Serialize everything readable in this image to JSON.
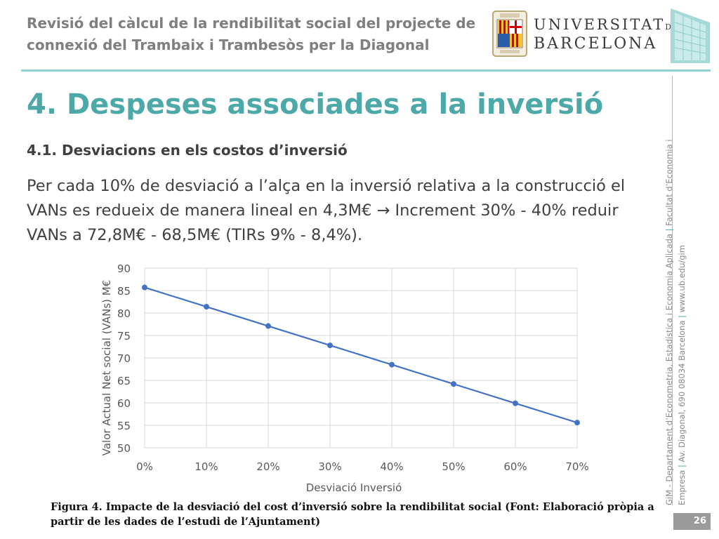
{
  "header": {
    "title": "Revisió del càlcul de la rendibilitat social del projecte de connexió del Trambaix i Trambesòs per la Diagonal",
    "logo_line1": "UNIVERSITAT",
    "logo_de": "DE",
    "logo_line2": "BARCELONA"
  },
  "page_title": "4. Despeses associades a la inversió",
  "section_title": "4.1. Desviacions en els costos d’inversió",
  "body_text": "Per cada 10% de desviació a l’alça en la inversió relativa a la construcció el VANs es redueix de manera lineal en 4,3M€ → Increment 30% - 40% reduir VANs a 72,8M€ - 68,5M€ (TIRs 9% - 8,4%).",
  "chart_data": {
    "type": "line",
    "categories": [
      "0%",
      "10%",
      "20%",
      "30%",
      "40%",
      "50%",
      "60%",
      "70%"
    ],
    "series": [
      {
        "values": [
          85.7,
          81.4,
          77.1,
          72.8,
          68.5,
          64.2,
          59.9,
          55.6
        ]
      }
    ],
    "xlabel": "Desviació Inversió",
    "ylabel": "Valor Actual Net social (VANs) M€",
    "ylim": [
      50,
      90
    ],
    "yticks": [
      50,
      55,
      60,
      65,
      70,
      75,
      80,
      85,
      90
    ],
    "grid": true,
    "line_color": "#4472c4"
  },
  "caption": "Figura 4. Impacte de la desviació del cost d’inversió sobre la rendibilitat social (Font: Elaboració pròpia a partir de les dades de l’estudi de l’Ajuntament)",
  "sidebar": {
    "line1_a": "GiM - Departament d’Econometria, Estadística i Economia Aplicada",
    "sep": "|",
    "line1_b": "Facultat d’Economia i",
    "line2_a": "Empresa",
    "line2_b": "Av. Diagonal, 690 08034 Barcelona",
    "line2_c": "www.ub.edu/gim"
  },
  "page_number": "26"
}
